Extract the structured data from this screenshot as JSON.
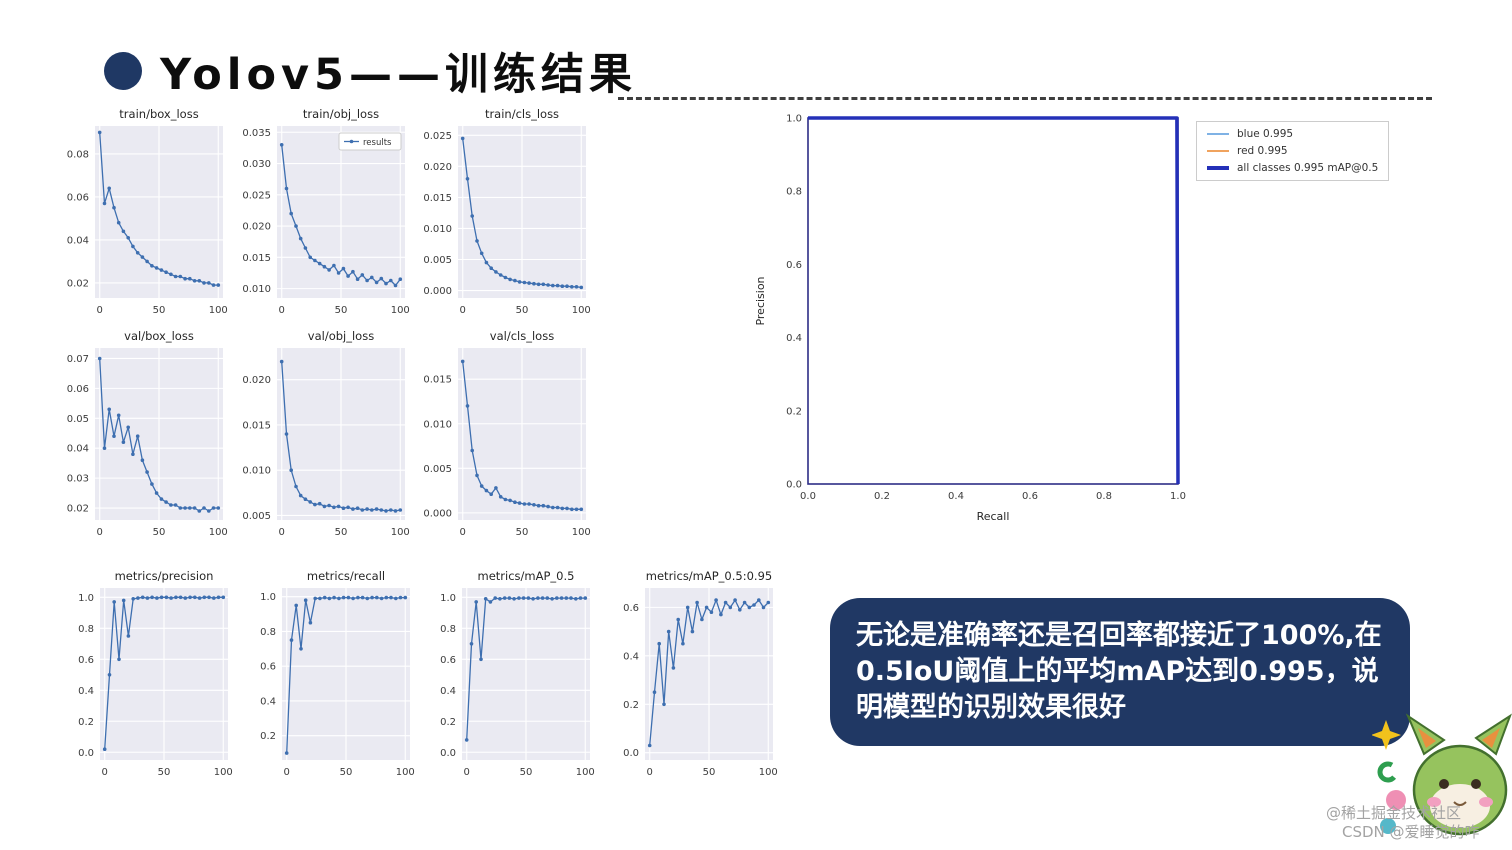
{
  "header": {
    "title": "Yolov5——训练结果"
  },
  "callout": {
    "text": "无论是准确率还是召回率都接近了100%,在0.5IoU阈值上的平均mAP达到0.995，说明模型的识别效果很好"
  },
  "watermarks": {
    "juejin": "@稀土掘金技术社区",
    "csdn": "CSDN @爱睡觉的咋"
  },
  "colors": {
    "accent_navy": "#203864",
    "title_bullet": "#1f3864",
    "chart_line": "#3e6fb0",
    "plot_background": "#eaeaf2",
    "pr_blue": "#7fb2e5",
    "pr_orange": "#f0a35e",
    "pr_navy": "#2430b8"
  },
  "chart_data": [
    {
      "id": "train-box-loss",
      "type": "line",
      "title": "train/box_loss",
      "x": [
        0,
        4,
        8,
        12,
        16,
        20,
        24,
        28,
        32,
        36,
        40,
        44,
        48,
        52,
        56,
        60,
        64,
        68,
        72,
        76,
        80,
        84,
        88,
        92,
        96,
        100
      ],
      "y": [
        0.09,
        0.057,
        0.064,
        0.055,
        0.048,
        0.044,
        0.041,
        0.037,
        0.034,
        0.032,
        0.03,
        0.028,
        0.027,
        0.026,
        0.025,
        0.024,
        0.023,
        0.023,
        0.022,
        0.022,
        0.021,
        0.021,
        0.02,
        0.02,
        0.019,
        0.019
      ],
      "xlim": [
        -4,
        104
      ],
      "ylim": [
        0.013,
        0.093
      ],
      "xticks": [
        "0",
        "50",
        "100"
      ],
      "yticks": [
        "0.02",
        "0.04",
        "0.06",
        "0.08"
      ],
      "color": "#3e6fb0",
      "marker": true,
      "grid": true,
      "bg": "#eaeaf2"
    },
    {
      "id": "train-obj-loss",
      "type": "line",
      "title": "train/obj_loss",
      "inner_legend": "results",
      "x": [
        0,
        4,
        8,
        12,
        16,
        20,
        24,
        28,
        32,
        36,
        40,
        44,
        48,
        52,
        56,
        60,
        64,
        68,
        72,
        76,
        80,
        84,
        88,
        92,
        96,
        100
      ],
      "y": [
        0.033,
        0.026,
        0.022,
        0.02,
        0.018,
        0.0165,
        0.015,
        0.0145,
        0.014,
        0.0135,
        0.013,
        0.0137,
        0.0125,
        0.0132,
        0.012,
        0.0127,
        0.0115,
        0.0122,
        0.0113,
        0.0118,
        0.011,
        0.0116,
        0.0108,
        0.0113,
        0.0105,
        0.0115
      ],
      "xlim": [
        -4,
        104
      ],
      "ylim": [
        0.0085,
        0.036
      ],
      "xticks": [
        "0",
        "50",
        "100"
      ],
      "yticks": [
        "0.010",
        "0.015",
        "0.020",
        "0.025",
        "0.030",
        "0.035"
      ],
      "color": "#3e6fb0",
      "marker": true,
      "grid": true,
      "bg": "#eaeaf2"
    },
    {
      "id": "train-cls-loss",
      "type": "line",
      "title": "train/cls_loss",
      "x": [
        0,
        4,
        8,
        12,
        16,
        20,
        24,
        28,
        32,
        36,
        40,
        44,
        48,
        52,
        56,
        60,
        64,
        68,
        72,
        76,
        80,
        84,
        88,
        92,
        96,
        100
      ],
      "y": [
        0.0245,
        0.018,
        0.012,
        0.008,
        0.006,
        0.0045,
        0.0036,
        0.003,
        0.0025,
        0.0021,
        0.0018,
        0.0016,
        0.0014,
        0.0013,
        0.0012,
        0.0011,
        0.001,
        0.001,
        0.0009,
        0.0008,
        0.0008,
        0.0007,
        0.0007,
        0.0006,
        0.0006,
        0.0005
      ],
      "xlim": [
        -4,
        104
      ],
      "ylim": [
        -0.0012,
        0.0265
      ],
      "xticks": [
        "0",
        "50",
        "100"
      ],
      "yticks": [
        "0.000",
        "0.005",
        "0.010",
        "0.015",
        "0.020",
        "0.025"
      ],
      "color": "#3e6fb0",
      "marker": true,
      "grid": true,
      "bg": "#eaeaf2"
    },
    {
      "id": "val-box-loss",
      "type": "line",
      "title": "val/box_loss",
      "x": [
        0,
        4,
        8,
        12,
        16,
        20,
        24,
        28,
        32,
        36,
        40,
        44,
        48,
        52,
        56,
        60,
        64,
        68,
        72,
        76,
        80,
        84,
        88,
        92,
        96,
        100
      ],
      "y": [
        0.07,
        0.04,
        0.053,
        0.044,
        0.051,
        0.042,
        0.047,
        0.038,
        0.044,
        0.036,
        0.032,
        0.028,
        0.025,
        0.023,
        0.022,
        0.021,
        0.021,
        0.02,
        0.02,
        0.02,
        0.02,
        0.019,
        0.02,
        0.019,
        0.02,
        0.02
      ],
      "xlim": [
        -4,
        104
      ],
      "ylim": [
        0.016,
        0.0735
      ],
      "xticks": [
        "0",
        "50",
        "100"
      ],
      "yticks": [
        "0.02",
        "0.03",
        "0.04",
        "0.05",
        "0.06",
        "0.07"
      ],
      "color": "#3e6fb0",
      "marker": true,
      "grid": true,
      "bg": "#eaeaf2"
    },
    {
      "id": "val-obj-loss",
      "type": "line",
      "title": "val/obj_loss",
      "x": [
        0,
        4,
        8,
        12,
        16,
        20,
        24,
        28,
        32,
        36,
        40,
        44,
        48,
        52,
        56,
        60,
        64,
        68,
        72,
        76,
        80,
        84,
        88,
        92,
        96,
        100
      ],
      "y": [
        0.022,
        0.014,
        0.01,
        0.0082,
        0.0072,
        0.0068,
        0.0065,
        0.0062,
        0.0063,
        0.006,
        0.0061,
        0.0059,
        0.006,
        0.0058,
        0.0059,
        0.0057,
        0.0058,
        0.0056,
        0.0057,
        0.0056,
        0.0057,
        0.0056,
        0.0055,
        0.0056,
        0.0055,
        0.0056
      ],
      "xlim": [
        -4,
        104
      ],
      "ylim": [
        0.0045,
        0.0235
      ],
      "xticks": [
        "0",
        "50",
        "100"
      ],
      "yticks": [
        "0.005",
        "0.010",
        "0.015",
        "0.020"
      ],
      "color": "#3e6fb0",
      "marker": true,
      "grid": true,
      "bg": "#eaeaf2"
    },
    {
      "id": "val-cls-loss",
      "type": "line",
      "title": "val/cls_loss",
      "x": [
        0,
        4,
        8,
        12,
        16,
        20,
        24,
        28,
        32,
        36,
        40,
        44,
        48,
        52,
        56,
        60,
        64,
        68,
        72,
        76,
        80,
        84,
        88,
        92,
        96,
        100
      ],
      "y": [
        0.017,
        0.012,
        0.007,
        0.0042,
        0.003,
        0.0025,
        0.0021,
        0.0028,
        0.0018,
        0.0015,
        0.0014,
        0.0012,
        0.0011,
        0.001,
        0.001,
        0.0009,
        0.0008,
        0.0008,
        0.0007,
        0.0006,
        0.0006,
        0.0005,
        0.0005,
        0.0004,
        0.0004,
        0.0004
      ],
      "xlim": [
        -4,
        104
      ],
      "ylim": [
        -0.0008,
        0.0185
      ],
      "xticks": [
        "0",
        "50",
        "100"
      ],
      "yticks": [
        "0.000",
        "0.005",
        "0.010",
        "0.015"
      ],
      "color": "#3e6fb0",
      "marker": true,
      "grid": true,
      "bg": "#eaeaf2"
    },
    {
      "id": "metrics-precision",
      "type": "line",
      "title": "metrics/precision",
      "x": [
        0,
        4,
        8,
        12,
        16,
        20,
        24,
        28,
        32,
        36,
        40,
        44,
        48,
        52,
        56,
        60,
        64,
        68,
        72,
        76,
        80,
        84,
        88,
        92,
        96,
        100
      ],
      "y": [
        0.02,
        0.5,
        0.97,
        0.6,
        0.98,
        0.75,
        0.99,
        0.995,
        1.0,
        0.995,
        1.0,
        0.995,
        1.0,
        1.0,
        0.995,
        1.0,
        1.0,
        0.995,
        1.0,
        1.0,
        0.995,
        1.0,
        1.0,
        0.995,
        1.0,
        1.0
      ],
      "xlim": [
        -4,
        104
      ],
      "ylim": [
        -0.05,
        1.06
      ],
      "xticks": [
        "0",
        "50",
        "100"
      ],
      "yticks": [
        "0.0",
        "0.2",
        "0.4",
        "0.6",
        "0.8",
        "1.0"
      ],
      "color": "#3e6fb0",
      "marker": true,
      "grid": true,
      "bg": "#eaeaf2"
    },
    {
      "id": "metrics-recall",
      "type": "line",
      "title": "metrics/recall",
      "x": [
        0,
        4,
        8,
        12,
        16,
        20,
        24,
        28,
        32,
        36,
        40,
        44,
        48,
        52,
        56,
        60,
        64,
        68,
        72,
        76,
        80,
        84,
        88,
        92,
        96,
        100
      ],
      "y": [
        0.1,
        0.75,
        0.95,
        0.7,
        0.98,
        0.85,
        0.99,
        0.99,
        0.995,
        0.99,
        0.995,
        0.99,
        0.995,
        0.995,
        0.99,
        0.995,
        0.995,
        0.99,
        0.995,
        0.995,
        0.99,
        0.995,
        0.995,
        0.99,
        0.995,
        0.995
      ],
      "xlim": [
        -4,
        104
      ],
      "ylim": [
        0.06,
        1.05
      ],
      "xticks": [
        "0",
        "50",
        "100"
      ],
      "yticks": [
        "0.2",
        "0.4",
        "0.6",
        "0.8",
        "1.0"
      ],
      "color": "#3e6fb0",
      "marker": true,
      "grid": true,
      "bg": "#eaeaf2"
    },
    {
      "id": "metrics-map05",
      "type": "line",
      "title": "metrics/mAP_0.5",
      "x": [
        0,
        4,
        8,
        12,
        16,
        20,
        24,
        28,
        32,
        36,
        40,
        44,
        48,
        52,
        56,
        60,
        64,
        68,
        72,
        76,
        80,
        84,
        88,
        92,
        96,
        100
      ],
      "y": [
        0.08,
        0.7,
        0.97,
        0.6,
        0.99,
        0.97,
        0.995,
        0.99,
        0.995,
        0.995,
        0.99,
        0.995,
        0.995,
        0.995,
        0.99,
        0.995,
        0.995,
        0.995,
        0.99,
        0.995,
        0.995,
        0.995,
        0.995,
        0.99,
        0.995,
        0.995
      ],
      "xlim": [
        -4,
        104
      ],
      "ylim": [
        -0.05,
        1.06
      ],
      "xticks": [
        "0",
        "50",
        "100"
      ],
      "yticks": [
        "0.0",
        "0.2",
        "0.4",
        "0.6",
        "0.8",
        "1.0"
      ],
      "color": "#3e6fb0",
      "marker": true,
      "grid": true,
      "bg": "#eaeaf2"
    },
    {
      "id": "metrics-map0595",
      "type": "line",
      "title": "metrics/mAP_0.5:0.95",
      "x": [
        0,
        4,
        8,
        12,
        16,
        20,
        24,
        28,
        32,
        36,
        40,
        44,
        48,
        52,
        56,
        60,
        64,
        68,
        72,
        76,
        80,
        84,
        88,
        92,
        96,
        100
      ],
      "y": [
        0.03,
        0.25,
        0.45,
        0.2,
        0.5,
        0.35,
        0.55,
        0.45,
        0.6,
        0.5,
        0.62,
        0.55,
        0.6,
        0.58,
        0.63,
        0.57,
        0.62,
        0.6,
        0.63,
        0.59,
        0.62,
        0.6,
        0.61,
        0.63,
        0.6,
        0.62
      ],
      "xlim": [
        -4,
        104
      ],
      "ylim": [
        -0.03,
        0.68
      ],
      "xticks": [
        "0",
        "50",
        "100"
      ],
      "yticks": [
        "0.0",
        "0.2",
        "0.4",
        "0.6"
      ],
      "color": "#3e6fb0",
      "marker": true,
      "grid": true,
      "bg": "#eaeaf2"
    },
    {
      "id": "pr-curve",
      "type": "line",
      "title": "",
      "xlabel": "Recall",
      "ylabel": "Precision",
      "xlim": [
        0,
        1
      ],
      "ylim": [
        0,
        1
      ],
      "xticks": [
        "0.0",
        "0.2",
        "0.4",
        "0.6",
        "0.8",
        "1.0"
      ],
      "yticks": [
        "0.0",
        "0.2",
        "0.4",
        "0.6",
        "0.8",
        "1.0"
      ],
      "bg": "#ffffff",
      "border": "#2d2d86",
      "grid": false,
      "series": [
        {
          "name": "blue 0.995",
          "x": [
            0,
            0.995,
            1
          ],
          "y": [
            1,
            1,
            0
          ],
          "color": "#7fb2e5",
          "lw": 1.4,
          "marker": false
        },
        {
          "name": "red 0.995",
          "x": [
            0,
            0.995,
            1
          ],
          "y": [
            1,
            1,
            0
          ],
          "color": "#f0a35e",
          "lw": 1.4,
          "marker": false
        },
        {
          "name": "all classes 0.995 mAP@0.5",
          "x": [
            0,
            0.997,
            1
          ],
          "y": [
            1,
            1,
            0
          ],
          "color": "#2430b8",
          "lw": 3.5,
          "marker": false
        }
      ],
      "legend": [
        {
          "label": "blue 0.995",
          "color": "#7fb2e5",
          "lw": 2
        },
        {
          "label": "red 0.995",
          "color": "#f0a35e",
          "lw": 2
        },
        {
          "label": "all classes 0.995 mAP@0.5",
          "color": "#2430b8",
          "lw": 4
        }
      ]
    }
  ]
}
